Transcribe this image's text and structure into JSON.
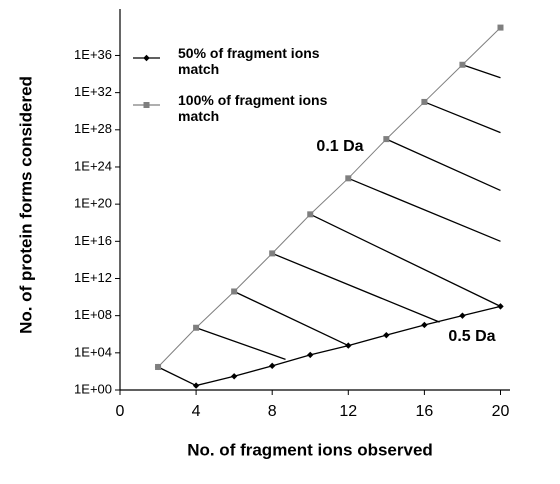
{
  "chart_data": {
    "type": "line",
    "xlabel": "No. of fragment ions observed",
    "ylabel": "No. of protein forms considered",
    "xlim": [
      0,
      20.5
    ],
    "xticks": [
      0,
      4,
      8,
      12,
      16,
      20
    ],
    "ylim": [
      1,
      1e+41
    ],
    "log_y": true,
    "yticks": [
      {
        "value": 1,
        "label": "1E+00"
      },
      {
        "value": 10000.0,
        "label": "1E+04"
      },
      {
        "value": 100000000.0,
        "label": "1E+08"
      },
      {
        "value": 1000000000000.0,
        "label": "1E+12"
      },
      {
        "value": 1e+16,
        "label": "1E+16"
      },
      {
        "value": 1e+20,
        "label": "1E+20"
      },
      {
        "value": 1e+24,
        "label": "1E+24"
      },
      {
        "value": 1e+28,
        "label": "1E+28"
      },
      {
        "value": 1e+32,
        "label": "1E+32"
      },
      {
        "value": 1e+36,
        "label": "1E+36"
      }
    ],
    "legend": "upper left",
    "series": [
      {
        "name": "50% of fragment ions match",
        "color": "#000000",
        "marker": "diamond",
        "x": [
          2,
          4,
          6,
          8,
          10,
          12,
          14,
          16,
          18,
          20
        ],
        "values": [
          300,
          3,
          30,
          400,
          6000,
          60000,
          800000,
          10000000,
          100000000,
          1000000000
        ]
      },
      {
        "name": "100% of fragment ions match",
        "color": "#7f7f7f",
        "marker": "square",
        "x": [
          2,
          4,
          6,
          8,
          10,
          12,
          14,
          16,
          18,
          20
        ],
        "values": [
          300,
          5000000,
          40000000000.0,
          500000000000000.0,
          8e+18,
          6e+22,
          1e+27,
          1e+31,
          1e+35,
          1e+39
        ]
      }
    ],
    "lines": [
      {
        "x": [
          4,
          8.7
        ],
        "y": [
          5000000,
          2000
        ]
      },
      {
        "x": [
          6,
          12
        ],
        "y": [
          40000000000.0,
          60000
        ]
      },
      {
        "x": [
          8,
          16.8
        ],
        "y": [
          500000000000000.0,
          20000000
        ]
      },
      {
        "x": [
          10,
          20
        ],
        "y": [
          8e+18,
          1000000000
        ]
      },
      {
        "x": [
          12,
          20
        ],
        "y": [
          6e+22,
          1e+16
        ]
      },
      {
        "x": [
          14,
          20
        ],
        "y": [
          1e+27,
          3e+21
        ]
      },
      {
        "x": [
          16,
          20
        ],
        "y": [
          1e+31,
          5e+27
        ]
      },
      {
        "x": [
          18,
          20
        ],
        "y": [
          1e+35,
          4e+33
        ]
      }
    ],
    "annotations": [
      "0.1 Da",
      "0.5 Da"
    ]
  }
}
